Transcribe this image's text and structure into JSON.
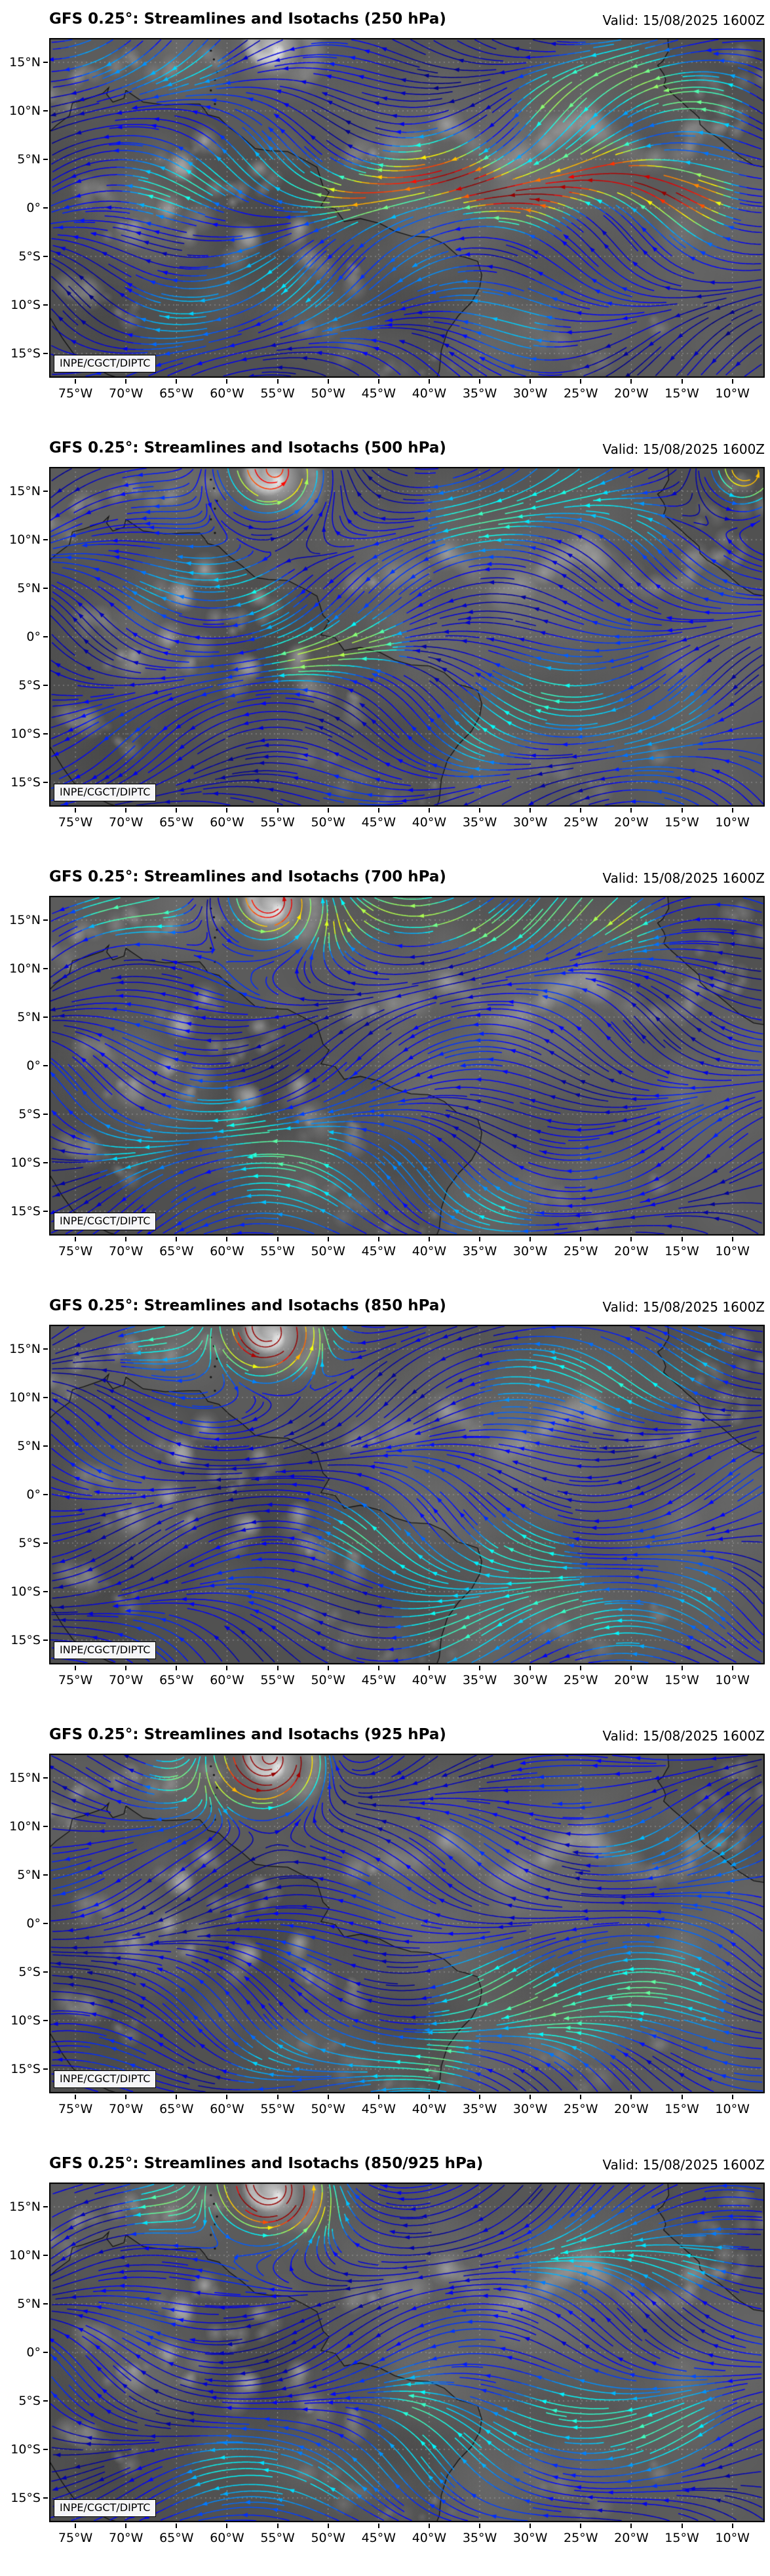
{
  "figure": {
    "valid": "Valid: 15/08/2025 1600Z",
    "watermark": "INPE/CGCT/DIPTC",
    "model": "GFS 0.25°",
    "product": "Streamlines and Isotachs"
  },
  "panels": [
    {
      "title": "GFS 0.25°: Streamlines and Isotachs (250 hPa)",
      "level": "250 hPa"
    },
    {
      "title": "GFS 0.25°: Streamlines and Isotachs (500 hPa)",
      "level": "500 hPa"
    },
    {
      "title": "GFS 0.25°: Streamlines and Isotachs (700 hPa)",
      "level": "700 hPa"
    },
    {
      "title": "GFS 0.25°: Streamlines and Isotachs (850 hPa)",
      "level": "850 hPa"
    },
    {
      "title": "GFS 0.25°: Streamlines and Isotachs (925 hPa)",
      "level": "925 hPa"
    },
    {
      "title": "GFS 0.25°: Streamlines and Isotachs (850/925 hPa)",
      "level": "850/925 hPa"
    }
  ],
  "axes": {
    "lat_ticks": [
      "15°N",
      "10°N",
      "5°N",
      "0°",
      "5°S",
      "10°S",
      "15°S"
    ],
    "lon_ticks": [
      "75°W",
      "70°W",
      "65°W",
      "60°W",
      "55°W",
      "50°W",
      "45°W",
      "40°W",
      "35°W",
      "30°W",
      "25°W",
      "20°W",
      "15°W",
      "10°W"
    ]
  },
  "colors": {
    "isotach_scale": [
      "#000080",
      "#0000ff",
      "#00bfff",
      "#00ffff",
      "#40ff80",
      "#80ff00",
      "#ffff00",
      "#ff8000",
      "#ff0000",
      "#800000"
    ],
    "satellite_background": "#5b5b5b",
    "gridline": "#afafaf",
    "coastline": "#0a0a0a"
  }
}
